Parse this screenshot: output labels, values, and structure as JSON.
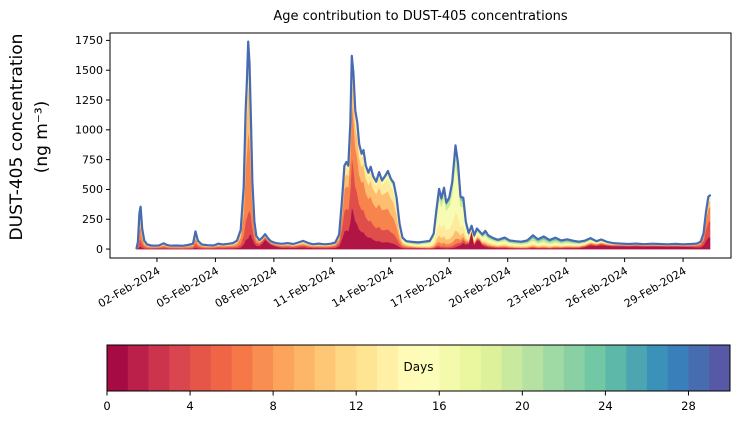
{
  "figure": {
    "title": "Age contribution to DUST-405 concentrations",
    "ylabel_line1": "DUST-405 concentration",
    "ylabel_line2": "(ng m⁻³)"
  },
  "chart_data": {
    "type": "area",
    "stacked": true,
    "title": "Age contribution to DUST-405 concentrations",
    "xlabel": "",
    "ylabel": "DUST-405 concentration (ng m⁻³)",
    "x_unit": "days since 01-Feb-2024 00:00",
    "xlim_days": [
      -1.41,
      30.46
    ],
    "ylim": [
      -75,
      1812
    ],
    "yticks": [
      0,
      250,
      500,
      750,
      1000,
      1250,
      1500,
      1750
    ],
    "xticks": [
      {
        "label": "02-Feb-2024",
        "day": 1
      },
      {
        "label": "05-Feb-2024",
        "day": 4
      },
      {
        "label": "08-Feb-2024",
        "day": 7
      },
      {
        "label": "11-Feb-2024",
        "day": 10
      },
      {
        "label": "14-Feb-2024",
        "day": 13
      },
      {
        "label": "17-Feb-2024",
        "day": 16
      },
      {
        "label": "20-Feb-2024",
        "day": 19
      },
      {
        "label": "23-Feb-2024",
        "day": 22
      },
      {
        "label": "26-Feb-2024",
        "day": 25
      },
      {
        "label": "29-Feb-2024",
        "day": 28
      }
    ],
    "grid": false,
    "line_color": "#466bb3",
    "frame_color": "#000000",
    "series_total": [
      [
        -0.05,
        6
      ],
      [
        0.02,
        60
      ],
      [
        0.1,
        300
      ],
      [
        0.16,
        355
      ],
      [
        0.24,
        170
      ],
      [
        0.35,
        70
      ],
      [
        0.5,
        38
      ],
      [
        0.7,
        30
      ],
      [
        0.9,
        28
      ],
      [
        1.1,
        30
      ],
      [
        1.35,
        48
      ],
      [
        1.5,
        35
      ],
      [
        1.7,
        28
      ],
      [
        2.0,
        30
      ],
      [
        2.3,
        27
      ],
      [
        2.6,
        34
      ],
      [
        2.85,
        45
      ],
      [
        2.98,
        148
      ],
      [
        3.1,
        70
      ],
      [
        3.3,
        38
      ],
      [
        3.6,
        32
      ],
      [
        3.9,
        30
      ],
      [
        4.15,
        45
      ],
      [
        4.4,
        38
      ],
      [
        4.65,
        44
      ],
      [
        4.9,
        50
      ],
      [
        5.1,
        70
      ],
      [
        5.3,
        160
      ],
      [
        5.45,
        520
      ],
      [
        5.55,
        1150
      ],
      [
        5.62,
        1430
      ],
      [
        5.68,
        1740
      ],
      [
        5.75,
        1560
      ],
      [
        5.82,
        1100
      ],
      [
        5.9,
        560
      ],
      [
        6.0,
        230
      ],
      [
        6.1,
        110
      ],
      [
        6.25,
        75
      ],
      [
        6.4,
        95
      ],
      [
        6.55,
        125
      ],
      [
        6.7,
        90
      ],
      [
        6.85,
        65
      ],
      [
        7.1,
        50
      ],
      [
        7.4,
        44
      ],
      [
        7.7,
        50
      ],
      [
        8.0,
        42
      ],
      [
        8.25,
        55
      ],
      [
        8.5,
        68
      ],
      [
        8.75,
        52
      ],
      [
        9.0,
        40
      ],
      [
        9.3,
        46
      ],
      [
        9.6,
        40
      ],
      [
        9.9,
        44
      ],
      [
        10.15,
        55
      ],
      [
        10.35,
        120
      ],
      [
        10.5,
        420
      ],
      [
        10.62,
        700
      ],
      [
        10.72,
        730
      ],
      [
        10.82,
        700
      ],
      [
        10.92,
        1050
      ],
      [
        11.0,
        1620
      ],
      [
        11.08,
        1480
      ],
      [
        11.18,
        1160
      ],
      [
        11.28,
        1060
      ],
      [
        11.38,
        880
      ],
      [
        11.5,
        800
      ],
      [
        11.6,
        830
      ],
      [
        11.72,
        700
      ],
      [
        11.85,
        640
      ],
      [
        11.97,
        690
      ],
      [
        12.1,
        610
      ],
      [
        12.25,
        565
      ],
      [
        12.4,
        645
      ],
      [
        12.55,
        575
      ],
      [
        12.7,
        610
      ],
      [
        12.85,
        655
      ],
      [
        13.0,
        590
      ],
      [
        13.15,
        555
      ],
      [
        13.3,
        430
      ],
      [
        13.45,
        210
      ],
      [
        13.6,
        95
      ],
      [
        13.8,
        66
      ],
      [
        14.1,
        60
      ],
      [
        14.4,
        56
      ],
      [
        14.7,
        62
      ],
      [
        15.0,
        68
      ],
      [
        15.2,
        130
      ],
      [
        15.35,
        340
      ],
      [
        15.48,
        505
      ],
      [
        15.6,
        425
      ],
      [
        15.73,
        515
      ],
      [
        15.85,
        390
      ],
      [
        16.0,
        430
      ],
      [
        16.15,
        560
      ],
      [
        16.32,
        870
      ],
      [
        16.45,
        720
      ],
      [
        16.58,
        440
      ],
      [
        16.72,
        430
      ],
      [
        16.85,
        230
      ],
      [
        17.0,
        135
      ],
      [
        17.15,
        195
      ],
      [
        17.28,
        115
      ],
      [
        17.42,
        172
      ],
      [
        17.55,
        150
      ],
      [
        17.7,
        122
      ],
      [
        17.85,
        152
      ],
      [
        18.0,
        115
      ],
      [
        18.25,
        92
      ],
      [
        18.5,
        78
      ],
      [
        18.85,
        96
      ],
      [
        19.1,
        72
      ],
      [
        19.4,
        66
      ],
      [
        19.7,
        62
      ],
      [
        20.0,
        72
      ],
      [
        20.3,
        115
      ],
      [
        20.55,
        82
      ],
      [
        20.85,
        105
      ],
      [
        21.15,
        76
      ],
      [
        21.45,
        95
      ],
      [
        21.75,
        72
      ],
      [
        22.05,
        82
      ],
      [
        22.35,
        70
      ],
      [
        22.65,
        62
      ],
      [
        22.95,
        70
      ],
      [
        23.25,
        92
      ],
      [
        23.55,
        66
      ],
      [
        23.8,
        80
      ],
      [
        24.1,
        60
      ],
      [
        24.4,
        50
      ],
      [
        24.8,
        46
      ],
      [
        25.2,
        42
      ],
      [
        25.6,
        46
      ],
      [
        26.0,
        41
      ],
      [
        26.4,
        45
      ],
      [
        26.8,
        42
      ],
      [
        27.2,
        40
      ],
      [
        27.6,
        43
      ],
      [
        28.0,
        40
      ],
      [
        28.4,
        42
      ],
      [
        28.7,
        46
      ],
      [
        28.9,
        62
      ],
      [
        29.05,
        130
      ],
      [
        29.18,
        320
      ],
      [
        29.3,
        440
      ],
      [
        29.38,
        450
      ]
    ],
    "age_bands_rep_days": [
      1,
      4,
      7,
      10,
      13,
      16,
      19.5,
      23,
      26
    ],
    "age_fraction_anchors": [
      {
        "d": -0.1,
        "f": [
          0.06,
          0.18,
          0.3,
          0.25,
          0.15,
          0.04,
          0.02,
          0.0,
          0.0
        ]
      },
      {
        "d": 0.15,
        "f": [
          0.06,
          0.18,
          0.3,
          0.25,
          0.15,
          0.04,
          0.02,
          0.0,
          0.0
        ]
      },
      {
        "d": 0.9,
        "f": [
          0.16,
          0.24,
          0.24,
          0.14,
          0.1,
          0.06,
          0.03,
          0.02,
          0.01
        ]
      },
      {
        "d": 3.0,
        "f": [
          0.1,
          0.22,
          0.3,
          0.18,
          0.1,
          0.05,
          0.03,
          0.01,
          0.01
        ]
      },
      {
        "d": 4.6,
        "f": [
          0.18,
          0.24,
          0.22,
          0.14,
          0.1,
          0.06,
          0.03,
          0.02,
          0.01
        ]
      },
      {
        "d": 5.7,
        "f": [
          0.05,
          0.12,
          0.4,
          0.25,
          0.13,
          0.03,
          0.02,
          0.0,
          0.0
        ]
      },
      {
        "d": 6.25,
        "f": [
          0.35,
          0.25,
          0.18,
          0.1,
          0.06,
          0.03,
          0.02,
          0.01,
          0.0
        ]
      },
      {
        "d": 6.6,
        "f": [
          0.7,
          0.1,
          0.06,
          0.04,
          0.04,
          0.03,
          0.02,
          0.01,
          0.0
        ]
      },
      {
        "d": 7.4,
        "f": [
          0.28,
          0.22,
          0.18,
          0.12,
          0.09,
          0.05,
          0.03,
          0.02,
          0.01
        ]
      },
      {
        "d": 9.5,
        "f": [
          0.2,
          0.2,
          0.18,
          0.15,
          0.12,
          0.07,
          0.04,
          0.03,
          0.01
        ]
      },
      {
        "d": 11.0,
        "f": [
          0.22,
          0.26,
          0.28,
          0.14,
          0.07,
          0.02,
          0.01,
          0.0,
          0.0
        ]
      },
      {
        "d": 12.5,
        "f": [
          0.1,
          0.18,
          0.3,
          0.22,
          0.14,
          0.04,
          0.02,
          0.0,
          0.0
        ]
      },
      {
        "d": 13.3,
        "f": [
          0.08,
          0.14,
          0.22,
          0.24,
          0.18,
          0.08,
          0.04,
          0.02,
          0.0
        ]
      },
      {
        "d": 14.3,
        "f": [
          0.14,
          0.08,
          0.08,
          0.1,
          0.13,
          0.15,
          0.15,
          0.12,
          0.05
        ]
      },
      {
        "d": 15.6,
        "f": [
          0.02,
          0.03,
          0.06,
          0.11,
          0.21,
          0.41,
          0.11,
          0.03,
          0.02
        ]
      },
      {
        "d": 16.4,
        "f": [
          0.02,
          0.03,
          0.05,
          0.08,
          0.18,
          0.46,
          0.12,
          0.04,
          0.02
        ]
      },
      {
        "d": 16.95,
        "f": [
          0.2,
          0.08,
          0.07,
          0.08,
          0.14,
          0.24,
          0.11,
          0.05,
          0.03
        ]
      },
      {
        "d": 17.15,
        "f": [
          0.78,
          0.04,
          0.02,
          0.02,
          0.04,
          0.05,
          0.03,
          0.02,
          0.0
        ]
      },
      {
        "d": 17.3,
        "f": [
          0.25,
          0.08,
          0.06,
          0.07,
          0.13,
          0.2,
          0.11,
          0.07,
          0.03
        ]
      },
      {
        "d": 17.5,
        "f": [
          0.55,
          0.06,
          0.04,
          0.05,
          0.08,
          0.1,
          0.07,
          0.03,
          0.02
        ]
      },
      {
        "d": 17.8,
        "f": [
          0.15,
          0.08,
          0.08,
          0.1,
          0.15,
          0.2,
          0.12,
          0.08,
          0.04
        ]
      },
      {
        "d": 19.5,
        "f": [
          0.1,
          0.07,
          0.08,
          0.1,
          0.14,
          0.18,
          0.16,
          0.11,
          0.06
        ]
      },
      {
        "d": 21.0,
        "f": [
          0.08,
          0.05,
          0.06,
          0.08,
          0.12,
          0.18,
          0.2,
          0.15,
          0.08
        ]
      },
      {
        "d": 22.6,
        "f": [
          0.15,
          0.08,
          0.08,
          0.09,
          0.12,
          0.16,
          0.14,
          0.12,
          0.06
        ]
      },
      {
        "d": 23.4,
        "f": [
          0.4,
          0.12,
          0.08,
          0.08,
          0.08,
          0.09,
          0.07,
          0.05,
          0.03
        ]
      },
      {
        "d": 25.0,
        "f": [
          0.55,
          0.15,
          0.08,
          0.05,
          0.04,
          0.04,
          0.04,
          0.03,
          0.02
        ]
      },
      {
        "d": 28.3,
        "f": [
          0.5,
          0.16,
          0.1,
          0.06,
          0.05,
          0.05,
          0.04,
          0.02,
          0.02
        ]
      },
      {
        "d": 28.9,
        "f": [
          0.25,
          0.28,
          0.24,
          0.12,
          0.06,
          0.03,
          0.02,
          0.0,
          0.0
        ]
      },
      {
        "d": 29.4,
        "f": [
          0.22,
          0.3,
          0.26,
          0.12,
          0.06,
          0.02,
          0.02,
          0.0,
          0.0
        ]
      }
    ],
    "colorbar": {
      "label": "Days",
      "min": 0,
      "max": 30,
      "n_segments": 30,
      "ticks": [
        0,
        4,
        8,
        12,
        16,
        20,
        24,
        28
      ],
      "colormap": "Spectral",
      "anchor_colors": [
        "#9e0142",
        "#d53e4f",
        "#f46d43",
        "#fdae61",
        "#fee08b",
        "#ffffbf",
        "#e6f598",
        "#abdda4",
        "#66c2a5",
        "#3288bd",
        "#5e4fa2"
      ]
    }
  }
}
